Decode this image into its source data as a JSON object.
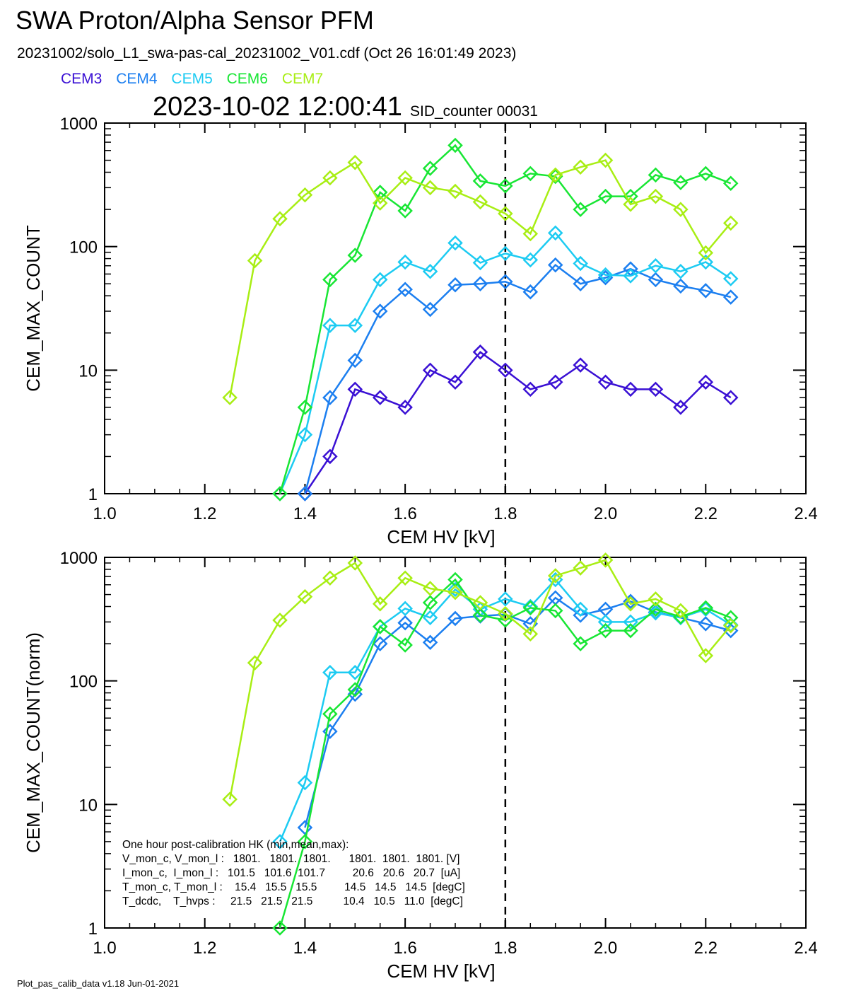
{
  "header": {
    "title": "SWA Proton/Alpha Sensor PFM",
    "subtitle": "20231002/solo_L1_swa-pas-cal_20231002_V01.cdf  (Oct 26 16:01:49 2023)",
    "datetime": "2023-10-02 12:00:41",
    "sid": "SID_counter 00031"
  },
  "footer": "Plot_pas_calib_data v1.18 Jun-01-2021",
  "legend": [
    {
      "name": "CEM3",
      "color": "#3a10d4"
    },
    {
      "name": "CEM4",
      "color": "#1c7ff0"
    },
    {
      "name": "CEM5",
      "color": "#1ccbf2"
    },
    {
      "name": "CEM6",
      "color": "#18e634"
    },
    {
      "name": "CEM7",
      "color": "#a8ee14"
    }
  ],
  "annotation": [
    "One hour post-calibration HK (min,mean,max):",
    "V_mon_c, V_mon_l :   1801.   1801.  1801.      1801.  1801.  1801. [V]",
    "I_mon_c,  I_mon_l :   101.5   101.6  101.7         20.6   20.6   20.7  [uA]",
    "T_mon_c, T_mon_l :    15.4   15.5   15.5         14.5   14.5   14.5  [degC]",
    "T_dcdc,    T_hvps :     21.5   21.5   21.5          10.4   10.5   11.0  [degC]"
  ],
  "chart_data": [
    {
      "type": "line",
      "xlabel": "CEM HV [kV]",
      "ylabel": "CEM_MAX_COUNT",
      "xlim": [
        1.0,
        2.4
      ],
      "ylim": [
        1,
        1000
      ],
      "yscale": "log",
      "xticks": [
        "1.0",
        "1.2",
        "1.4",
        "1.6",
        "1.8",
        "2.0",
        "2.2",
        "2.4"
      ],
      "yticks": [
        "1",
        "10",
        "100",
        "1000"
      ],
      "vline": 1.8,
      "series": [
        {
          "name": "CEM3",
          "color": "#3a10d4",
          "x": [
            1.4,
            1.45,
            1.5,
            1.55,
            1.6,
            1.65,
            1.7,
            1.75,
            1.8,
            1.85,
            1.9,
            1.95,
            2.0,
            2.05,
            2.1,
            2.15,
            2.2,
            2.25
          ],
          "values": [
            1,
            2,
            7,
            6,
            5,
            10,
            8,
            14,
            10,
            7,
            8,
            11,
            8,
            7,
            7,
            5,
            8,
            6
          ]
        },
        {
          "name": "CEM4",
          "color": "#1c7ff0",
          "x": [
            1.4,
            1.45,
            1.5,
            1.55,
            1.6,
            1.65,
            1.7,
            1.75,
            1.8,
            1.85,
            1.9,
            1.95,
            2.0,
            2.05,
            2.1,
            2.15,
            2.2,
            2.25
          ],
          "values": [
            1,
            6,
            12,
            30,
            45,
            31,
            49,
            50,
            52,
            43,
            71,
            50,
            56,
            66,
            54,
            48,
            44,
            39
          ]
        },
        {
          "name": "CEM5",
          "color": "#1ccbf2",
          "x": [
            1.35,
            1.4,
            1.45,
            1.5,
            1.55,
            1.6,
            1.65,
            1.7,
            1.75,
            1.8,
            1.85,
            1.9,
            1.95,
            2.0,
            2.05,
            2.1,
            2.15,
            2.2,
            2.25
          ],
          "values": [
            1,
            3,
            23,
            23,
            54,
            75,
            63,
            107,
            74,
            88,
            78,
            129,
            73,
            59,
            58,
            70,
            63,
            75,
            55
          ]
        },
        {
          "name": "CEM6",
          "color": "#18e634",
          "x": [
            1.35,
            1.4,
            1.45,
            1.5,
            1.55,
            1.6,
            1.65,
            1.7,
            1.75,
            1.8,
            1.85,
            1.9,
            1.95,
            2.0,
            2.05,
            2.1,
            2.15,
            2.2,
            2.25
          ],
          "values": [
            1,
            5,
            54,
            85,
            275,
            195,
            430,
            660,
            340,
            310,
            390,
            370,
            200,
            255,
            255,
            380,
            330,
            390,
            325
          ]
        },
        {
          "name": "CEM7",
          "color": "#a8ee14",
          "x": [
            1.25,
            1.3,
            1.35,
            1.4,
            1.45,
            1.5,
            1.55,
            1.6,
            1.65,
            1.7,
            1.75,
            1.8,
            1.85,
            1.9,
            1.95,
            2.0,
            2.05,
            2.1,
            2.15,
            2.2,
            2.25
          ],
          "values": [
            6,
            77,
            168,
            262,
            360,
            480,
            225,
            360,
            300,
            280,
            230,
            185,
            127,
            380,
            440,
            500,
            220,
            255,
            200,
            89,
            155
          ]
        }
      ]
    },
    {
      "type": "line",
      "xlabel": "CEM HV [kV]",
      "ylabel": "CEM_MAX_COUNT(norm)",
      "xlim": [
        1.0,
        2.4
      ],
      "ylim": [
        1,
        1000
      ],
      "yscale": "log",
      "xticks": [
        "1.0",
        "1.2",
        "1.4",
        "1.6",
        "1.8",
        "2.0",
        "2.2",
        "2.4"
      ],
      "yticks": [
        "1",
        "10",
        "100",
        "1000"
      ],
      "vline": 1.8,
      "series": [
        {
          "name": "CEM4",
          "color": "#1c7ff0",
          "x": [
            1.4,
            1.45,
            1.5,
            1.55,
            1.6,
            1.65,
            1.7,
            1.75,
            1.8,
            1.85,
            1.9,
            1.95,
            2.0,
            2.05,
            2.1,
            2.15,
            2.2,
            2.25
          ],
          "values": [
            6.5,
            39,
            78,
            200,
            295,
            205,
            320,
            335,
            345,
            290,
            470,
            340,
            380,
            440,
            360,
            325,
            290,
            255
          ]
        },
        {
          "name": "CEM5",
          "color": "#1ccbf2",
          "x": [
            1.35,
            1.4,
            1.45,
            1.5,
            1.55,
            1.6,
            1.65,
            1.7,
            1.75,
            1.8,
            1.85,
            1.9,
            1.95,
            2.0,
            2.05,
            2.1,
            2.15,
            2.2,
            2.25
          ],
          "values": [
            5,
            15,
            117,
            117,
            275,
            385,
            325,
            550,
            380,
            460,
            400,
            660,
            380,
            300,
            300,
            355,
            325,
            380,
            285
          ]
        },
        {
          "name": "CEM6",
          "color": "#18e634",
          "x": [
            1.35,
            1.4,
            1.45,
            1.5,
            1.55,
            1.6,
            1.65,
            1.7,
            1.75,
            1.8,
            1.85,
            1.9,
            1.95,
            2.0,
            2.05,
            2.1,
            2.15,
            2.2,
            2.25
          ],
          "values": [
            1,
            5,
            54,
            85,
            275,
            195,
            430,
            660,
            340,
            310,
            390,
            370,
            200,
            255,
            255,
            380,
            330,
            390,
            325
          ]
        },
        {
          "name": "CEM7",
          "color": "#a8ee14",
          "x": [
            1.25,
            1.3,
            1.35,
            1.4,
            1.45,
            1.5,
            1.55,
            1.6,
            1.65,
            1.7,
            1.75,
            1.8,
            1.85,
            1.9,
            1.95,
            2.0,
            2.05,
            2.1,
            2.15,
            2.2,
            2.25
          ],
          "values": [
            11,
            140,
            310,
            480,
            680,
            900,
            420,
            680,
            560,
            520,
            430,
            350,
            240,
            710,
            820,
            950,
            420,
            460,
            370,
            160,
            280
          ]
        }
      ]
    }
  ]
}
